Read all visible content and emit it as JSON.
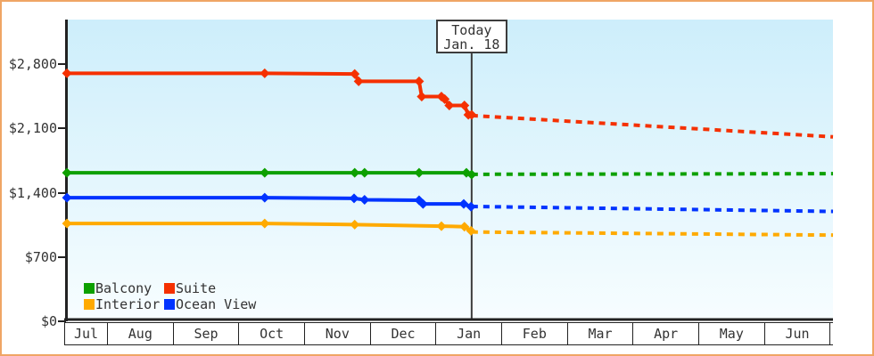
{
  "axes": {
    "y": {
      "ticks": [
        {
          "value": 2800,
          "label": "$2,800"
        },
        {
          "value": 2100,
          "label": "$2,100"
        },
        {
          "value": 1400,
          "label": "$1,400"
        },
        {
          "value": 700,
          "label": "$700"
        },
        {
          "value": 0,
          "label": "$0"
        }
      ]
    },
    "x": {
      "months": [
        "Jul",
        "Aug",
        "Sep",
        "Oct",
        "Nov",
        "Dec",
        "Jan",
        "Feb",
        "Mar",
        "Apr",
        "May",
        "Jun"
      ]
    }
  },
  "today": {
    "line1": "Today",
    "line2": "Jan. 18",
    "month_position": 6.55
  },
  "legend": {
    "items": [
      {
        "label": "Balcony",
        "color": "#0da000"
      },
      {
        "label": "Suite",
        "color": "#f53000"
      },
      {
        "label": "Interior",
        "color": "#ffaa00"
      },
      {
        "label": "Ocean View",
        "color": "#0033ff"
      }
    ]
  },
  "colors": {
    "frame_border": "#efa565",
    "axis": "#222222",
    "text": "#333333",
    "today_line": "#3c3c3c",
    "plot_bg_top": "#cdeefb",
    "plot_bg_bottom": "#f7fdff"
  },
  "chart_data": {
    "type": "line",
    "title": "",
    "x_unit": "months since Jul 1 (0 = Jul 1; 6.55 = Jan 18, the Today marker)",
    "x_range": [
      0,
      12.05
    ],
    "y_range": [
      0,
      2800
    ],
    "y_tick_step": 700,
    "y_unit": "USD",
    "grid": false,
    "legend_position": "bottom-left inside plot",
    "annotation": {
      "label": "Today Jan. 18",
      "x": 6.55
    },
    "series": [
      {
        "name": "Suite",
        "color": "#f53000",
        "history_style": "solid",
        "forecast_style": "dashed",
        "history": [
          [
            0.39,
            2700
          ],
          [
            3.4,
            2700
          ],
          [
            4.77,
            2692
          ],
          [
            4.83,
            2612
          ],
          [
            5.75,
            2612
          ],
          [
            5.79,
            2446
          ],
          [
            6.09,
            2446
          ],
          [
            6.14,
            2418
          ],
          [
            6.21,
            2350
          ],
          [
            6.44,
            2350
          ],
          [
            6.5,
            2248
          ],
          [
            6.55,
            2248
          ]
        ],
        "forecast": [
          [
            6.55,
            2240
          ],
          [
            12.05,
            2008
          ]
        ]
      },
      {
        "name": "Balcony",
        "color": "#0da000",
        "history_style": "solid",
        "forecast_style": "dashed",
        "history": [
          [
            0.39,
            1617
          ],
          [
            3.4,
            1617
          ],
          [
            4.77,
            1617
          ],
          [
            4.92,
            1617
          ],
          [
            5.75,
            1617
          ],
          [
            6.47,
            1617
          ],
          [
            6.55,
            1598
          ]
        ],
        "forecast": [
          [
            6.55,
            1600
          ],
          [
            12.05,
            1607
          ]
        ]
      },
      {
        "name": "Ocean View",
        "color": "#0033ff",
        "history_style": "solid",
        "forecast_style": "dashed",
        "history": [
          [
            0.39,
            1345
          ],
          [
            3.4,
            1345
          ],
          [
            4.76,
            1338
          ],
          [
            4.92,
            1323
          ],
          [
            5.75,
            1318
          ],
          [
            5.81,
            1278
          ],
          [
            6.43,
            1278
          ],
          [
            6.54,
            1247
          ]
        ],
        "forecast": [
          [
            6.55,
            1250
          ],
          [
            12.05,
            1196
          ]
        ]
      },
      {
        "name": "Interior",
        "color": "#ffaa00",
        "history_style": "solid",
        "forecast_style": "dashed",
        "history": [
          [
            0.39,
            1065
          ],
          [
            3.4,
            1065
          ],
          [
            4.77,
            1053
          ],
          [
            6.09,
            1036
          ],
          [
            6.44,
            1030
          ],
          [
            6.54,
            985
          ]
        ],
        "forecast": [
          [
            6.55,
            972
          ],
          [
            12.05,
            938
          ]
        ]
      }
    ]
  }
}
